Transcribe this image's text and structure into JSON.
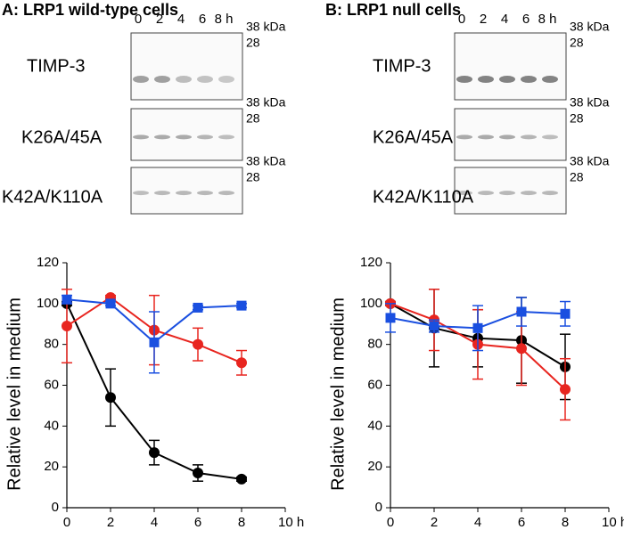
{
  "chart_data": [
    {
      "type": "line",
      "title": "A: LRP1 wild-type cells",
      "blot": {
        "lanes": [
          "0",
          "2",
          "4",
          "6",
          "8 h"
        ],
        "markers": [
          "38 kDa",
          "28"
        ]
      },
      "ylabel": "Relative level in medium",
      "x": [
        0,
        2,
        4,
        6,
        8
      ],
      "xlim": [
        0,
        10
      ],
      "xticks": [
        0,
        2,
        4,
        6,
        8,
        {
          "value": 10,
          "label": "10 h"
        }
      ],
      "ylim": [
        0,
        120
      ],
      "yticks": [
        0,
        20,
        40,
        60,
        80,
        100,
        120
      ],
      "series": [
        {
          "name": "TIMP-3",
          "color": "#000000",
          "marker": "circle",
          "values": [
            100,
            54,
            27,
            17,
            14
          ],
          "errors": [
            1,
            14,
            6,
            4,
            1
          ]
        },
        {
          "name": "K26A/45A",
          "color": "#e8251f",
          "marker": "circle",
          "values": [
            89,
            103,
            87,
            80,
            71
          ],
          "errors": [
            18,
            1,
            17,
            8,
            6
          ]
        },
        {
          "name": "K42A/K110A",
          "color": "#1a4fe0",
          "marker": "square",
          "values": [
            102,
            100,
            81,
            98,
            99
          ],
          "errors": [
            2,
            1,
            15,
            1,
            1
          ]
        }
      ]
    },
    {
      "type": "line",
      "title": "B: LRP1 null cells",
      "blot": {
        "lanes": [
          "0",
          "2",
          "4",
          "6",
          "8 h"
        ],
        "markers": [
          "38 kDa",
          "28"
        ]
      },
      "ylabel": "Relative level in medium",
      "x": [
        0,
        2,
        4,
        6,
        8
      ],
      "xlim": [
        0,
        10
      ],
      "xticks": [
        0,
        2,
        4,
        6,
        8,
        {
          "value": 10,
          "label": "10 h"
        }
      ],
      "ylim": [
        0,
        120
      ],
      "yticks": [
        0,
        20,
        40,
        60,
        80,
        100,
        120
      ],
      "series": [
        {
          "name": "TIMP-3",
          "color": "#000000",
          "marker": "circle",
          "values": [
            100,
            88,
            83,
            82,
            69
          ],
          "errors": [
            1,
            19,
            14,
            21,
            16
          ]
        },
        {
          "name": "K26A/45A",
          "color": "#e8251f",
          "marker": "circle",
          "values": [
            100,
            92,
            80,
            78,
            58
          ],
          "errors": [
            1,
            15,
            17,
            18,
            15
          ]
        },
        {
          "name": "K42A/K110A",
          "color": "#1a4fe0",
          "marker": "square",
          "values": [
            93,
            89,
            88,
            96,
            95
          ],
          "errors": [
            7,
            3,
            11,
            7,
            6
          ]
        }
      ]
    }
  ]
}
